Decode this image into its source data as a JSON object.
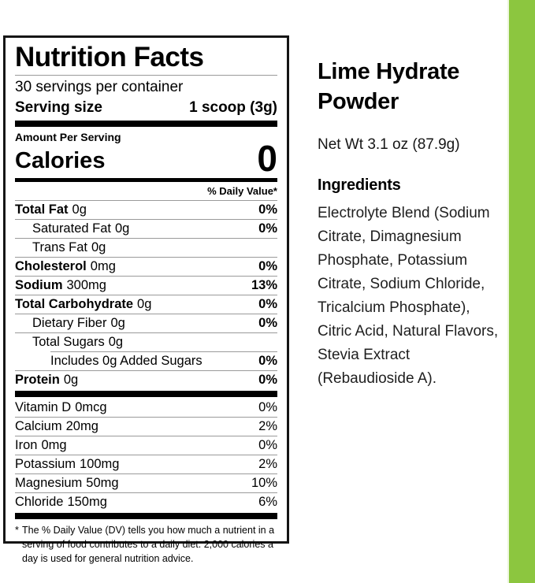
{
  "panel": {
    "title": "Nutrition Facts",
    "servings_per_container": "30 servings per container",
    "serving_size_label": "Serving size",
    "serving_size_value": "1 scoop (3g)",
    "amount_per_serving": "Amount Per Serving",
    "calories_label": "Calories",
    "calories_value": "0",
    "daily_value_header": "% Daily Value*",
    "rows": [
      {
        "name": "Total Fat",
        "amount": "0g",
        "dv": "0%"
      },
      {
        "name": "Saturated Fat",
        "amount": "0g",
        "dv": "0%"
      },
      {
        "name": "Trans Fat",
        "amount": "0g",
        "dv": ""
      },
      {
        "name": "Cholesterol",
        "amount": "0mg",
        "dv": "0%"
      },
      {
        "name": "Sodium",
        "amount": "300mg",
        "dv": "13%"
      },
      {
        "name": "Total Carbohydrate",
        "amount": "0g",
        "dv": "0%"
      },
      {
        "name": "Dietary Fiber",
        "amount": "0g",
        "dv": "0%"
      },
      {
        "name": "Total Sugars",
        "amount": "0g",
        "dv": ""
      },
      {
        "name": "Includes 0g Added Sugars",
        "amount": "",
        "dv": "0%"
      },
      {
        "name": "Protein",
        "amount": "0g",
        "dv": "0%"
      }
    ],
    "micronutrients": [
      {
        "name": "Vitamin D",
        "amount": "0mcg",
        "dv": "0%"
      },
      {
        "name": "Calcium",
        "amount": "20mg",
        "dv": "2%"
      },
      {
        "name": "Iron",
        "amount": "0mg",
        "dv": "0%"
      },
      {
        "name": "Potassium",
        "amount": "100mg",
        "dv": "2%"
      },
      {
        "name": "Magnesium",
        "amount": "50mg",
        "dv": "10%"
      },
      {
        "name": "Chloride",
        "amount": "150mg",
        "dv": "6%"
      }
    ],
    "footnote_marker": "*",
    "footnote": "The % Daily Value (DV) tells you how much a nutrient in a serving of food contributes to a daily diet. 2,000 calories a day is used for general nutrition advice."
  },
  "product": {
    "name": "Lime Hydrate Powder",
    "net_weight": "Net Wt 3.1 oz (87.9g)",
    "ingredients_heading": "Ingredients",
    "ingredients_text": "Electrolyte Blend (Sodium Citrate, Dimagnesium Phosphate, Potassium Citrate, Sodium Chloride, Tricalcium Phosphate), Citric Acid, Natural Flavors, Stevia Extract (Rebaudioside A)."
  },
  "colors": {
    "accent_green": "#8CC63F"
  }
}
